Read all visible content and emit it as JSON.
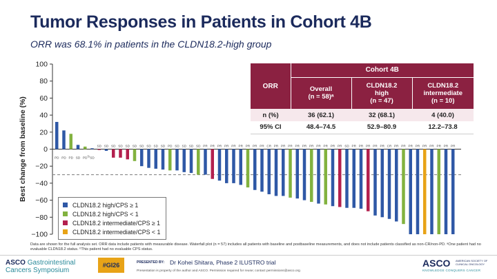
{
  "header": {
    "title": "Tumor Responses in Patients in Cohort 4B",
    "subtitle": "ORR was 68.1% in patients in the CLDN18.2-high group"
  },
  "table": {
    "cohort_label": "Cohort 4B",
    "orr_label": "ORR",
    "col_overall": [
      "Overall",
      "(n = 58)ᵃ"
    ],
    "col_high": [
      "CLDN18.2",
      "high",
      "(n = 47)"
    ],
    "col_intermediate": [
      "CLDN18.2",
      "intermediate",
      "(n = 10)"
    ],
    "row_n_label": "n (%)",
    "row_n": [
      "36 (62.1)",
      "32 (68.1)",
      "4 (40.0)"
    ],
    "row_ci_label": "95% CI",
    "row_ci": [
      "48.4–74.5",
      "52.9–80.9",
      "12.2–73.8"
    ]
  },
  "legend": [
    {
      "label": "CLDN18.2 high/CPS ≥ 1",
      "color": "#2f58a6"
    },
    {
      "label": "CLDN18.2 high/CPS < 1",
      "color": "#82b23f"
    },
    {
      "label": "CLDN18.2 intermediate/CPS ≥ 1",
      "color": "#b3204e"
    },
    {
      "label": "CLDN18.2 intermediate/CPS < 1",
      "color": "#e8a317"
    }
  ],
  "colors": {
    "blue": "#2f58a6",
    "green": "#82b23f",
    "red": "#b3204e",
    "orange": "#e8a317",
    "title": "#1b2a5c",
    "table_header": "#8b2141"
  },
  "chart_data": {
    "type": "bar",
    "title": "",
    "ylabel": "Best change from baseline (%)",
    "ylim": [
      -100,
      100
    ],
    "yticks": [
      100,
      80,
      60,
      40,
      20,
      0,
      -20,
      -40,
      -60,
      -80,
      -100
    ],
    "reference_line": -30,
    "values": [
      32,
      22,
      18,
      5,
      3,
      1,
      -1,
      -2,
      -10,
      -10,
      -12,
      -14,
      -20,
      -22,
      -23,
      -24,
      -25,
      -25,
      -27,
      -28,
      -30,
      -30,
      -35,
      -37,
      -40,
      -40,
      -42,
      -45,
      -48,
      -50,
      -53,
      -55,
      -55,
      -57,
      -58,
      -60,
      -62,
      -64,
      -65,
      -67,
      -68,
      -69,
      -69,
      -70,
      -73,
      -78,
      -80,
      -82,
      -85,
      -88,
      -100,
      -100,
      -100,
      -100,
      -100,
      -100,
      -100
    ],
    "groups": [
      "blue",
      "blue",
      "green",
      "blue",
      "green",
      "blue",
      "red",
      "blue",
      "red",
      "red",
      "red",
      "green",
      "blue",
      "blue",
      "blue",
      "blue",
      "green",
      "blue",
      "blue",
      "blue",
      "green",
      "blue",
      "red",
      "blue",
      "blue",
      "blue",
      "blue",
      "green",
      "blue",
      "blue",
      "blue",
      "blue",
      "blue",
      "green",
      "blue",
      "blue",
      "green",
      "blue",
      "green",
      "blue",
      "red",
      "blue",
      "blue",
      "blue",
      "red",
      "blue",
      "blue",
      "blue",
      "blue",
      "green",
      "blue",
      "blue",
      "orange",
      "blue",
      "green",
      "blue",
      "blue"
    ],
    "response_labels": [
      "PD",
      "PD",
      "PD",
      "SD",
      "PD",
      "SD",
      "SD",
      "SD",
      "SD",
      "SD",
      "SD",
      "SD",
      "SD",
      "SD",
      "SD",
      "SD",
      "PD",
      "SD",
      "SD",
      "SD",
      "SD",
      "PR",
      "PR",
      "PR",
      "PR",
      "PR",
      "PR",
      "PR",
      "PR",
      "PR",
      "CR",
      "PR",
      "PR",
      "PR",
      "PR",
      "PR",
      "PR",
      "PR",
      "PR",
      "PR",
      "PR",
      "SD",
      "PR",
      "PR",
      "PR",
      "PR",
      "PR",
      "CR",
      "PR",
      "PR",
      "PR",
      "PR",
      "PR",
      "PR",
      "PR",
      "PR",
      "PR"
    ],
    "pointer_note": "b"
  },
  "footnote": "Data are shown for the full analysis set. ORR data include patients with measurable disease. Waterfall plot (n = 57) includes all patients with baseline and postbaseline measurements, and does not include patients classified as non-CR/non-PD. ᵃOne patient had no evaluable CLDN18.2 status. ᵇThis patient had no evaluable CPS status.",
  "footer": {
    "asco_left_1": "ASCO",
    "asco_left_1b": "Gastrointestinal",
    "asco_left_2": "Cancers Symposium",
    "hashtag": "#GI26",
    "presented_by": "PRESENTED BY:",
    "presenter": "Dr Kohei Shitara, Phase 2 ILUSTRO trial",
    "property": "Presentation is property of the author and ASCO. Permission required for reuse; contact permissions@asco.org",
    "asco_right": "ASCO",
    "asco_right_soc": "AMERICAN SOCIETY OF CLINICAL ONCOLOGY",
    "asco_right_tag": "KNOWLEDGE CONQUERS CANCER"
  }
}
